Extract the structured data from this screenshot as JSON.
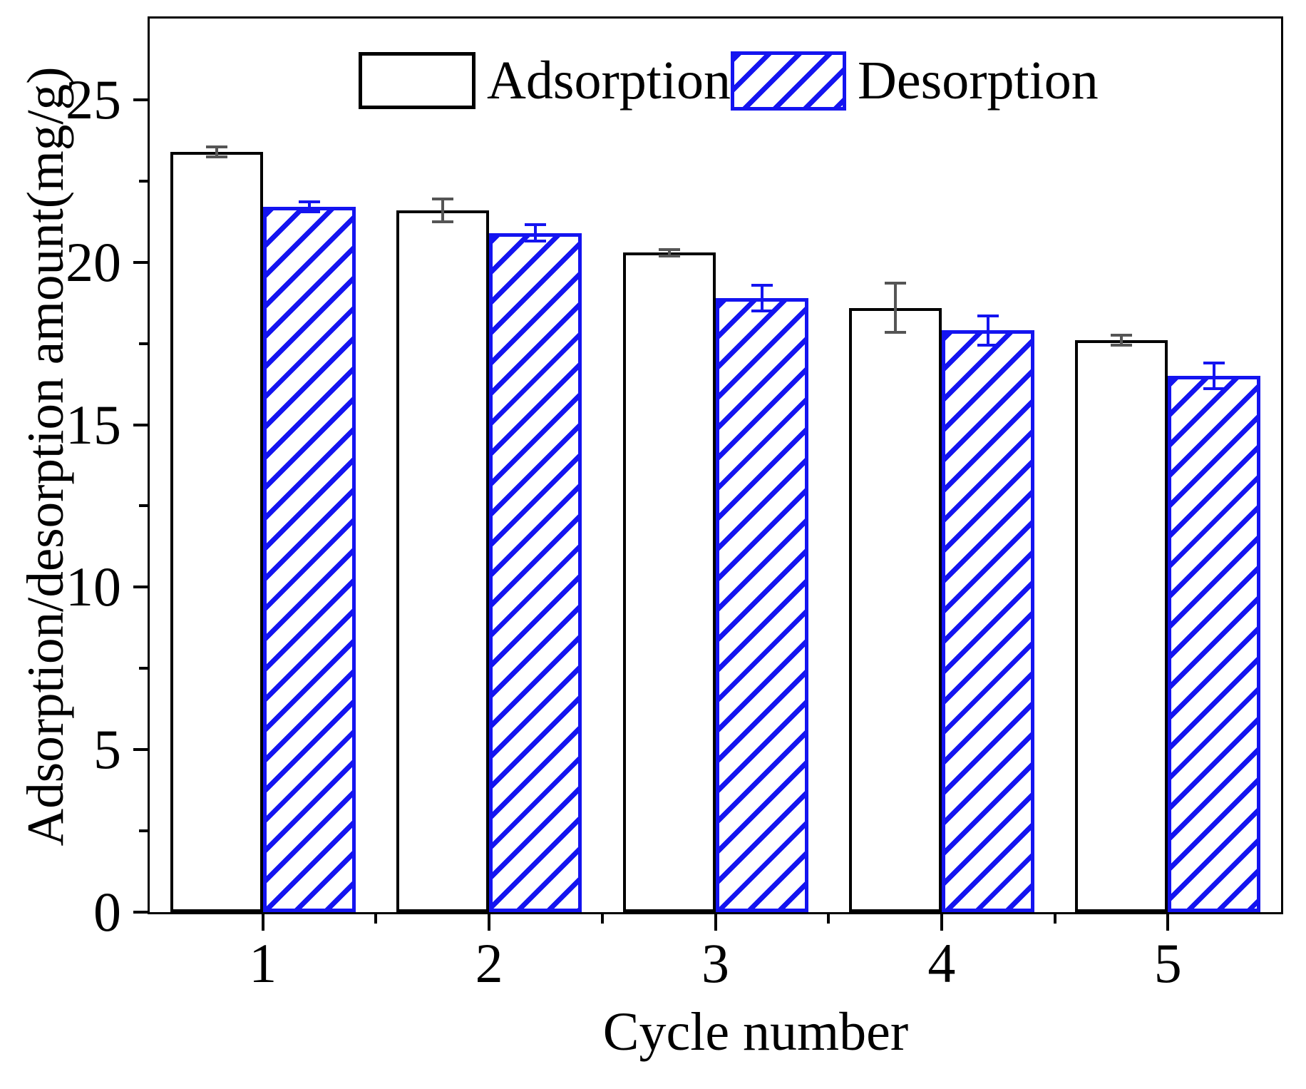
{
  "chart_data": {
    "type": "bar",
    "title": "",
    "xlabel": "Cycle number",
    "ylabel": "Adsorption/desorption amount(mg/g)",
    "categories": [
      1,
      2,
      3,
      4,
      5
    ],
    "series": [
      {
        "name": "Adsorption",
        "values": [
          23.4,
          21.6,
          20.3,
          18.6,
          17.6
        ],
        "errors": [
          0.15,
          0.35,
          0.1,
          0.75,
          0.15
        ],
        "fill": "#ffffff",
        "edge_color": "#000000",
        "hatch": "none"
      },
      {
        "name": "Desorption",
        "values": [
          21.7,
          20.9,
          18.9,
          17.9,
          16.5
        ],
        "errors": [
          0.15,
          0.25,
          0.4,
          0.45,
          0.4
        ],
        "fill": "#ffffff",
        "edge_color": "#1414f0",
        "hatch": "diagonal-forward-slash"
      }
    ],
    "ylim": [
      0,
      27.5
    ],
    "xlim": [
      0.5,
      5.5
    ],
    "y_ticks": [
      0,
      5,
      10,
      15,
      20,
      25
    ],
    "y_tick_labels": [
      "0",
      "5",
      "10",
      "15",
      "20",
      "25"
    ],
    "y_minor_ticks": [
      2.5,
      7.5,
      12.5,
      17.5,
      22.5
    ],
    "x_ticks": [
      1,
      2,
      3,
      4,
      5
    ],
    "x_tick_labels": [
      "1",
      "2",
      "3",
      "4",
      "5"
    ],
    "x_minor_ticks": [
      1.5,
      2.5,
      3.5,
      4.5
    ],
    "grid": false,
    "legend_position": "top-center",
    "error_bars": true
  },
  "legend": {
    "items": [
      {
        "label": "Adsorption",
        "swatch": "white-box-black-border"
      },
      {
        "label": "Desorption",
        "swatch": "blue-hatched-box"
      }
    ]
  },
  "colors": {
    "axis": "#000000",
    "adsorption_edge": "#000000",
    "desorption_blue": "#1414f0",
    "adsorption_error": "#555555",
    "background": "#ffffff"
  }
}
